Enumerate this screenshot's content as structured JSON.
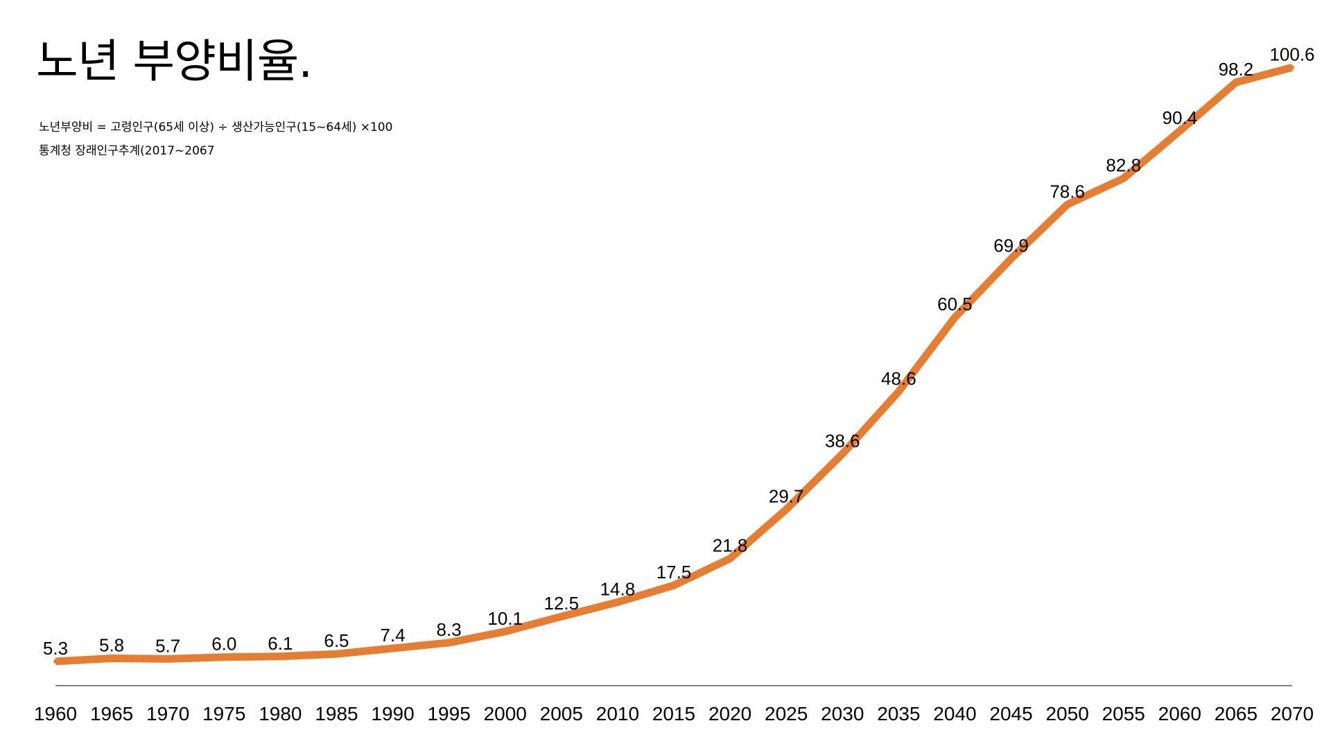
{
  "chart_data": {
    "type": "line",
    "title": "노년 부양비율.",
    "subtitle_formula": "노년부양비 = 고령인구(65세 이상) ÷ 생산가능인구(15~64세) ×100",
    "source": "통계청 장래인구추계(2017~2067",
    "x": [
      "1960",
      "1965",
      "1970",
      "1975",
      "1980",
      "1985",
      "1990",
      "1995",
      "2000",
      "2005",
      "2010",
      "2015",
      "2020",
      "2025",
      "2030",
      "2035",
      "2040",
      "2045",
      "2050",
      "2055",
      "2060",
      "2065",
      "2070"
    ],
    "series": [
      {
        "values": [
          5.3,
          5.8,
          5.7,
          6.0,
          6.1,
          6.5,
          7.4,
          8.3,
          10.1,
          12.5,
          14.8,
          17.5,
          21.8,
          29.7,
          38.6,
          48.6,
          60.5,
          69.9,
          78.6,
          82.8,
          90.4,
          98.2,
          100.6
        ],
        "labels": [
          "5.3",
          "5.8",
          "5.7",
          "6.0",
          "6.1",
          "6.5",
          "7.4",
          "8.3",
          "10.1",
          "12.5",
          "14.8",
          "17.5",
          "21.8",
          "29.7",
          "38.6",
          "48.6",
          "60.5",
          "69.9",
          "78.6",
          "82.8",
          "90.4",
          "98.2",
          "100.6"
        ]
      }
    ],
    "line_color": "#E57E33",
    "axis_color": "#555555",
    "grid": false,
    "legend": "none"
  }
}
